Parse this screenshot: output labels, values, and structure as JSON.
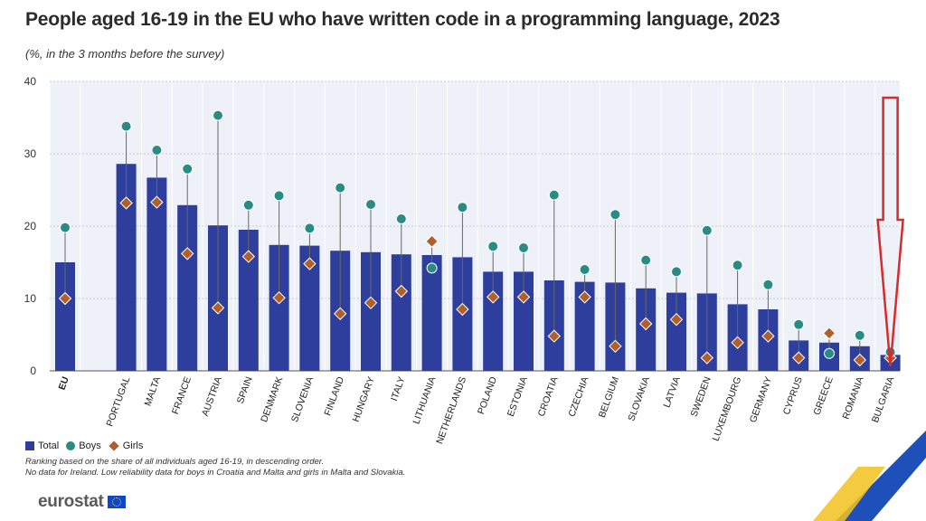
{
  "title": "People aged 16-19 in the EU who have written code in a programming language, 2023",
  "subtitle": "(%, in the 3 months before the survey)",
  "legend": {
    "total": "Total",
    "boys": "Boys",
    "girls": "Girls"
  },
  "notes": {
    "line1": "Ranking based on the share of all individuals aged 16-19, in descending order.",
    "line2": "No data for Ireland. Low reliability data for boys in Croatia and Malta and girls in Malta and Slovakia."
  },
  "logo": {
    "text": "eurostat"
  },
  "colors": {
    "total": "#2e3e9c",
    "boys": "#2a8b84",
    "girls": "#b0602a",
    "arrow": "#d62b2b"
  },
  "chart_data": {
    "type": "bar",
    "title": "People aged 16-19 in the EU who have written code in a programming language, 2023",
    "subtitle": "(%, in the 3 months before the survey)",
    "ylim": [
      0,
      40
    ],
    "yticks": [
      0,
      10,
      20,
      30,
      40
    ],
    "grid": true,
    "legend_position": "bottom-left",
    "categories": [
      "EU",
      "PORTUGAL",
      "MALTA",
      "FRANCE",
      "AUSTRIA",
      "SPAIN",
      "DENMARK",
      "SLOVENIA",
      "FINLAND",
      "HUNGARY",
      "ITALY",
      "LITHUANIA",
      "NETHERLANDS",
      "POLAND",
      "ESTONIA",
      "CROATIA",
      "CZECHIA",
      "BELGIUM",
      "SLOVAKIA",
      "LATVIA",
      "SWEDEN",
      "LUXEMBOURG",
      "GERMANY",
      "CYPRUS",
      "GREECE",
      "ROMANIA",
      "BULGARIA"
    ],
    "series": [
      {
        "name": "Total",
        "kind": "bar",
        "values": [
          15.0,
          28.6,
          26.7,
          22.9,
          20.1,
          19.5,
          17.4,
          17.3,
          16.6,
          16.4,
          16.1,
          16.0,
          15.7,
          13.7,
          13.7,
          12.5,
          12.3,
          12.2,
          11.4,
          10.8,
          10.7,
          9.2,
          8.5,
          4.2,
          3.9,
          3.4,
          2.2
        ]
      },
      {
        "name": "Boys",
        "kind": "circle",
        "values": [
          19.8,
          33.8,
          30.5,
          27.9,
          35.3,
          22.9,
          24.2,
          19.7,
          25.3,
          23.0,
          21.0,
          14.2,
          22.6,
          17.2,
          17.0,
          24.3,
          14.0,
          21.6,
          15.3,
          13.7,
          19.4,
          14.6,
          11.9,
          6.4,
          2.4,
          4.9,
          2.6
        ]
      },
      {
        "name": "Girls",
        "kind": "diamond",
        "values": [
          10.0,
          23.2,
          23.3,
          16.2,
          8.7,
          15.8,
          10.1,
          14.8,
          7.9,
          9.4,
          11.0,
          17.9,
          8.5,
          10.2,
          10.2,
          4.8,
          10.2,
          3.4,
          6.5,
          7.1,
          1.8,
          3.9,
          4.8,
          1.8,
          5.2,
          1.5,
          1.8
        ]
      }
    ],
    "annotation": {
      "type": "arrow",
      "target": "BULGARIA"
    }
  }
}
